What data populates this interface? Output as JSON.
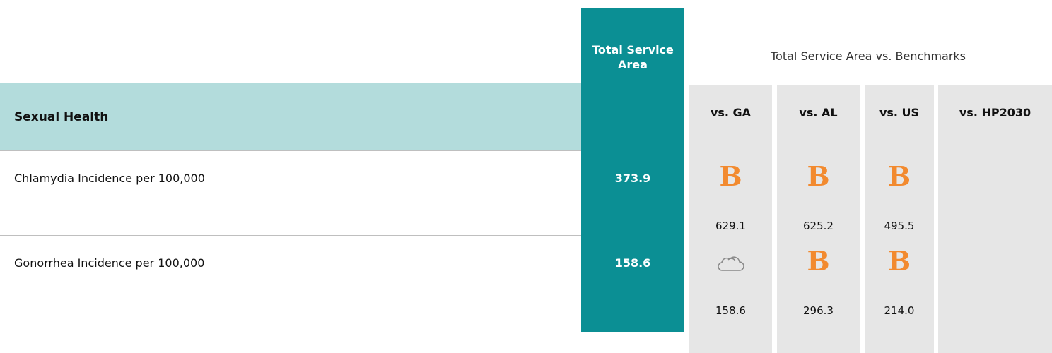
{
  "header": {
    "section": "Sexual Health",
    "total_column": "Total Service Area",
    "benchmark_title": "Total Service Area vs. Benchmarks",
    "columns": [
      "vs. GA",
      "vs. AL",
      "vs. US",
      "vs. HP2030"
    ]
  },
  "table": {
    "rows": [
      {
        "label": "Chlamydia Incidence per 100,000",
        "total": "373.9",
        "benchmarks": [
          {
            "symbol": "B",
            "value": "629.1"
          },
          {
            "symbol": "B",
            "value": "625.2"
          },
          {
            "symbol": "B",
            "value": "495.5"
          }
        ]
      },
      {
        "label": "Gonorrhea Incidence per 100,000",
        "total": "158.6",
        "benchmarks": [
          {
            "value": "158.6"
          },
          {
            "symbol": "B",
            "value": "296.3"
          },
          {
            "symbol": "B",
            "value": "214.0"
          }
        ]
      }
    ]
  }
}
